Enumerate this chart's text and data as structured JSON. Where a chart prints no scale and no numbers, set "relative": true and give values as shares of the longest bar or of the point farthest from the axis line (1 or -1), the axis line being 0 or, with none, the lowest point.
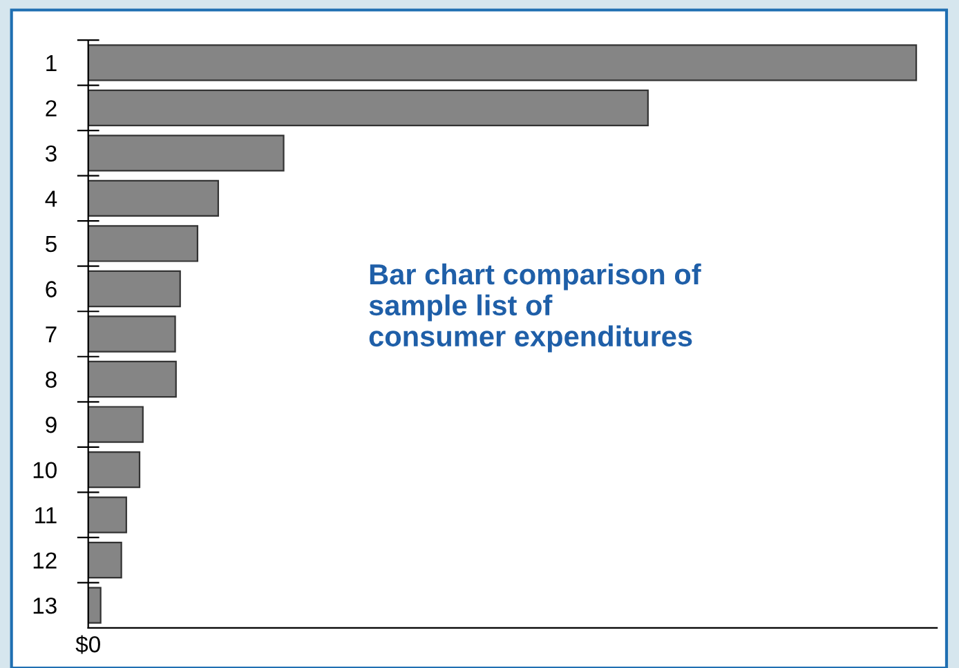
{
  "chart_data": {
    "type": "bar",
    "orientation": "horizontal",
    "relative": true,
    "title": "Bar chart comparison of\nsample list of\nconsumer expenditures",
    "categories": [
      "1",
      "2",
      "3",
      "4",
      "5",
      "6",
      "7",
      "8",
      "9",
      "10",
      "11",
      "12",
      "13"
    ],
    "values": [
      1,
      0.676,
      0.236,
      0.157,
      0.132,
      0.111,
      0.105,
      0.106,
      0.066,
      0.062,
      0.046,
      0.04,
      0.015
    ],
    "color": "#858585",
    "annotations": [
      "$0"
    ]
  }
}
